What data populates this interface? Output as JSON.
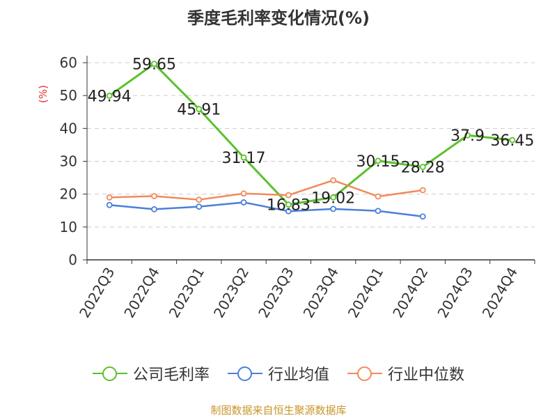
{
  "title": "季度毛利率变化情况(%)",
  "source_note": "制图数据来自恒生聚源数据库",
  "chart_data": {
    "type": "line",
    "title": "季度毛利率变化情况(%)",
    "xlabel": "",
    "ylabel": "(%)",
    "ylim": [
      0,
      60
    ],
    "yticks": [
      0,
      10,
      20,
      30,
      40,
      50,
      60
    ],
    "grid": true,
    "legend_position": "bottom",
    "categories": [
      "2022Q3",
      "2022Q4",
      "2023Q1",
      "2023Q2",
      "2023Q3",
      "2023Q4",
      "2024Q1",
      "2024Q2",
      "2024Q3",
      "2024Q4"
    ],
    "series": [
      {
        "name": "公司毛利率",
        "color": "#5ac12b",
        "values": [
          49.94,
          59.65,
          45.91,
          31.17,
          16.83,
          19.02,
          30.15,
          28.28,
          37.9,
          36.45
        ],
        "labels": [
          "49.94",
          "59.65",
          "45.91",
          "31.17",
          "16.83",
          "19.02",
          "30.15",
          "28.28",
          "37.9",
          "36.45"
        ]
      },
      {
        "name": "行业均值",
        "color": "#4a7fdb",
        "values": [
          16.7,
          15.4,
          16.2,
          17.5,
          14.8,
          15.5,
          14.9,
          13.2,
          null,
          null
        ]
      },
      {
        "name": "行业中位数",
        "color": "#f28a5a",
        "values": [
          19.0,
          19.4,
          18.3,
          20.2,
          19.7,
          24.2,
          19.3,
          21.2,
          null,
          null
        ]
      }
    ]
  }
}
